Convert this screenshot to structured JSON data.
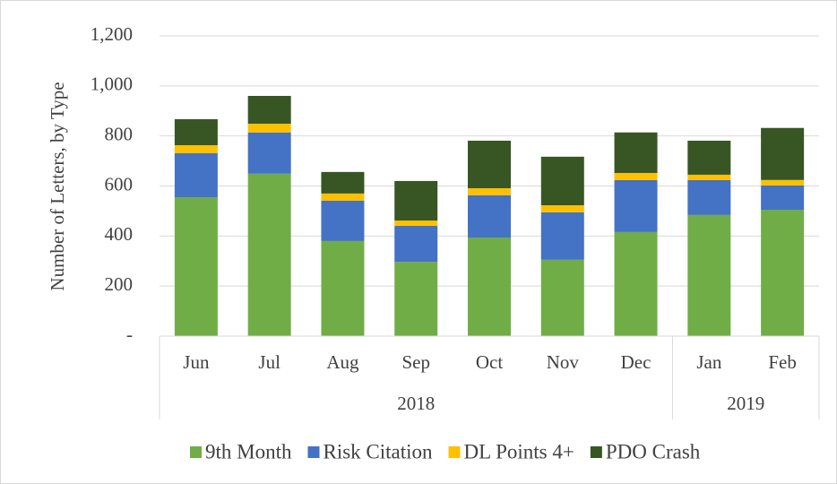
{
  "chart_data": {
    "type": "stacked_bar",
    "y_axis_label": "Number of Letters, by Type",
    "categories": [
      "Jun",
      "Jul",
      "Aug",
      "Sep",
      "Oct",
      "Nov",
      "Dec",
      "Jan",
      "Feb"
    ],
    "x_groups": [
      {
        "label": "2018",
        "span": 7
      },
      {
        "label": "2019",
        "span": 2
      }
    ],
    "series": [
      {
        "name": "9th Month",
        "color": "#70ad47",
        "values": [
          555,
          649,
          380,
          297,
          394,
          305,
          416,
          484,
          505
        ]
      },
      {
        "name": "Risk Citation",
        "color": "#4472c4",
        "values": [
          176,
          165,
          161,
          144,
          169,
          190,
          208,
          140,
          97
        ]
      },
      {
        "name": "DL Points 4+",
        "color": "#ffc000",
        "values": [
          32,
          35,
          29,
          21,
          28,
          28,
          28,
          21,
          22
        ]
      },
      {
        "name": "PDO Crash",
        "color": "#375623",
        "values": [
          104,
          111,
          86,
          158,
          190,
          194,
          162,
          136,
          208
        ]
      }
    ],
    "ylim": [
      0,
      1200
    ],
    "yticks": [
      {
        "value": 0,
        "label": "-"
      },
      200,
      400,
      600,
      800,
      {
        "value": 1000,
        "label": "1,000"
      },
      {
        "value": 1200,
        "label": "1,200"
      }
    ],
    "grid": true,
    "legend": "bottom"
  }
}
